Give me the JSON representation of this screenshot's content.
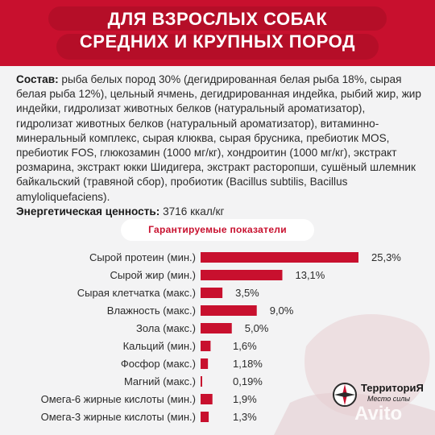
{
  "header": {
    "line1": "ДЛЯ ВЗРОСЛЫХ СОБАК",
    "line2": "СРЕДНИХ И КРУПНЫХ ПОРОД"
  },
  "composition": {
    "label": "Состав:",
    "text": "рыба белых пород 30% (дегидрированная белая рыба 18%, сырая белая рыба 12%), цельный ячмень, дегидрированная индейка, рыбий жир, жир индейки, гидролизат животных белков (натуральный ароматизатор), гидролизат животных белков (натуральный ароматизатор), витаминно-минеральный комплекс, сырая клюква, сырая брусника, пребиотик MOS, пребиотик FOS, глюкозамин (1000 мг/кг), хондроитин (1000 мг/кг), экстракт розмарина, экстракт юкки Шидигера, экстракт расторопши, сушёный шлемник байкальский (травяной сбор), пробиотик (Bacillus subtilis, Bacillus amyloliquefaciens).",
    "energy_label": "Энергетическая ценность:",
    "energy_value": "3716 ккал/кг"
  },
  "section_title": "Гарантируемые показатели",
  "brand": {
    "name": "ТерриториЯ",
    "tagline": "Место силы",
    "watermark": "Avito"
  },
  "colors": {
    "accent": "#c8102e",
    "bar": "#c8102e",
    "background": "#f3f3f4"
  },
  "chart_data": {
    "type": "bar",
    "orientation": "horizontal",
    "categories": [
      "Сырой протеин (мин.)",
      "Сырой жир (мин.)",
      "Сырая клетчатка (макс.)",
      "Влажность (макс.)",
      "Зола (макс.)",
      "Кальций (мин.)",
      "Фосфор (макс.)",
      "Магний (макс.)",
      "Омега-6 жирные кислоты (мин.)",
      "Омега-3 жирные кислоты (мин.)"
    ],
    "values": [
      25.3,
      13.1,
      3.5,
      9.0,
      5.0,
      1.6,
      1.18,
      0.19,
      1.9,
      1.3
    ],
    "labels": [
      "25,3%",
      "13,1%",
      "3,5%",
      "9,0%",
      "5,0%",
      "1,6%",
      "1,18%",
      "0,19%",
      "1,9%",
      "1,3%"
    ],
    "unit": "%"
  }
}
